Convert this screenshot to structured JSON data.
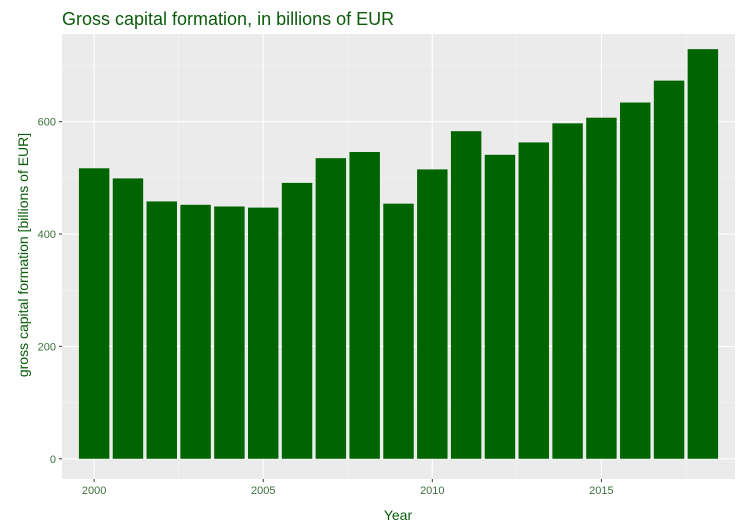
{
  "colors": {
    "bar": "#006400",
    "text": "#0a5c0a",
    "tick_text": "#3f6f3f",
    "panel": "#ebebeb",
    "grid_major": "#ffffff",
    "grid_minor": "#f5f5f5",
    "tick": "#333333"
  },
  "chart_data": {
    "type": "bar",
    "title": "Gross capital formation, in billions of EUR",
    "xlabel": "Year",
    "ylabel": "gross capital formation [billions of EUR]",
    "grid": true,
    "legend": "none",
    "xlim": [
      1999.05,
      2018.95
    ],
    "ylim": [
      -36,
      756
    ],
    "xticks": [
      2000,
      2005,
      2010,
      2015
    ],
    "yticks": [
      0,
      200,
      400,
      600
    ],
    "x": [
      2000,
      2001,
      2002,
      2003,
      2004,
      2005,
      2006,
      2007,
      2008,
      2009,
      2010,
      2011,
      2012,
      2013,
      2014,
      2015,
      2016,
      2017,
      2018
    ],
    "values": [
      517,
      499,
      458,
      452,
      449,
      447,
      491,
      535,
      546,
      454,
      515,
      583,
      541,
      563,
      597,
      607,
      634,
      673,
      729
    ]
  }
}
